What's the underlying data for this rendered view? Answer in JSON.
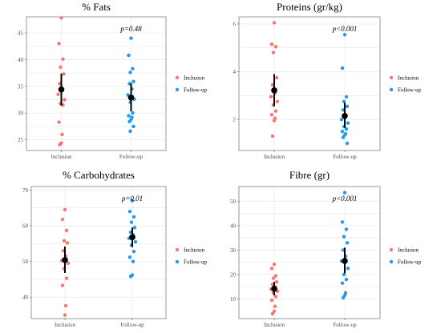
{
  "colors": {
    "inclusion": "#F8766D",
    "followup": "#1E9BF0",
    "summary": "#000000"
  },
  "legend": {
    "inclusion": "Inclusion",
    "followup": "Follow-up"
  },
  "chart_data": [
    {
      "type": "scatter",
      "title": "% Fats",
      "categories": [
        "Inclusion",
        "Follow-up"
      ],
      "ylim": [
        23,
        48
      ],
      "yticks": [
        25,
        30,
        35,
        40,
        45
      ],
      "pvalue": "p=0.48",
      "series": [
        {
          "name": "Inclusion",
          "values": [
            47.8,
            43.0,
            40.1,
            38.6,
            37.3,
            35.5,
            34.3,
            33.5,
            32.5,
            31.8,
            31.5,
            28.3,
            26.0,
            24.4,
            24.1
          ]
        },
        {
          "name": "Follow-up",
          "values": [
            44.0,
            40.8,
            38.3,
            37.6,
            35.9,
            35.5,
            34.5,
            33.4,
            32.6,
            32.0,
            30.0,
            29.5,
            29.2,
            28.8,
            28.4,
            27.5,
            26.6
          ]
        }
      ],
      "summary": [
        {
          "mean": 34.4,
          "low": 31.4,
          "high": 37.4
        },
        {
          "mean": 32.9,
          "low": 30.3,
          "high": 35.6
        }
      ]
    },
    {
      "type": "scatter",
      "title": "Proteins (gr/kg)",
      "categories": [
        "Inclusion",
        "Follow-up"
      ],
      "ylim": [
        0.7,
        6.3
      ],
      "yticks": [
        2,
        4,
        6
      ],
      "pvalue": "p<0.001",
      "series": [
        {
          "name": "Inclusion",
          "values": [
            6.05,
            5.15,
            5.05,
            4.8,
            3.75,
            3.45,
            3.1,
            2.95,
            2.75,
            2.6,
            2.35,
            2.2,
            2.05,
            1.95,
            1.3
          ]
        },
        {
          "name": "Follow-up",
          "values": [
            5.55,
            4.15,
            2.95,
            2.75,
            2.55,
            2.4,
            2.15,
            2.0,
            1.85,
            1.7,
            1.6,
            1.5,
            1.4,
            1.35,
            1.25,
            1.0
          ]
        }
      ],
      "summary": [
        {
          "mean": 3.22,
          "low": 2.55,
          "high": 3.9
        },
        {
          "mean": 2.15,
          "low": 1.65,
          "high": 2.7
        }
      ]
    },
    {
      "type": "scatter",
      "title": "% Carbohydrates",
      "categories": [
        "Inclusion",
        "Follow-up"
      ],
      "ylim": [
        34,
        71
      ],
      "yticks": [
        40,
        50,
        60,
        70
      ],
      "pvalue": "p=0.01",
      "series": [
        {
          "name": "Inclusion",
          "values": [
            64.5,
            61.8,
            58.7,
            55.8,
            55.2,
            53.0,
            51.5,
            50.2,
            49.5,
            48.0,
            45.3,
            43.3,
            37.6,
            35.0
          ]
        },
        {
          "name": "Follow-up",
          "values": [
            67.0,
            64.0,
            62.5,
            61.0,
            59.5,
            58.2,
            57.5,
            56.5,
            55.5,
            54.6,
            52.8,
            51.2,
            50.0,
            46.2,
            45.8
          ]
        }
      ],
      "summary": [
        {
          "mean": 50.4,
          "low": 46.8,
          "high": 54.2
        },
        {
          "mean": 56.8,
          "low": 54.0,
          "high": 59.5
        }
      ]
    },
    {
      "type": "scatter",
      "title": "Fibre (gr)",
      "categories": [
        "Inclusion",
        "Follow-up"
      ],
      "ylim": [
        2,
        56
      ],
      "yticks": [
        10,
        20,
        30,
        40,
        50
      ],
      "pvalue": "p<0.001",
      "series": [
        {
          "name": "Inclusion",
          "values": [
            24.2,
            22.5,
            19.5,
            18.5,
            17.0,
            16.0,
            15.0,
            14.0,
            13.2,
            12.5,
            11.0,
            9.5,
            7.0,
            5.0,
            4.0
          ]
        },
        {
          "name": "Follow-up",
          "values": [
            53.5,
            41.5,
            38.5,
            35.5,
            33.0,
            30.0,
            27.5,
            25.5,
            22.5,
            20.0,
            18.0,
            16.5,
            12.5,
            11.5,
            10.5
          ]
        }
      ],
      "summary": [
        {
          "mean": 14.2,
          "low": 11.5,
          "high": 17.0
        },
        {
          "mean": 25.6,
          "low": 20.5,
          "high": 31.0
        }
      ]
    }
  ]
}
